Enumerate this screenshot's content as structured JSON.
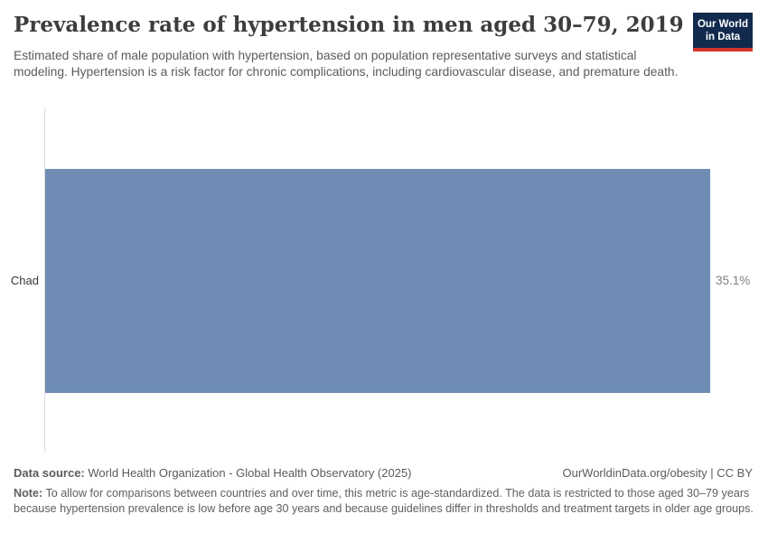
{
  "header": {
    "title": "Prevalence rate of hypertension in men aged 30–79, 2019",
    "subtitle": "Estimated share of male population with hypertension, based on population representative surveys and statistical modeling. Hypertension is a risk factor for chronic complications, including cardiovascular disease, and premature death.",
    "logo": {
      "line1": "Our World",
      "line2": "in Data",
      "background_color": "#122a4e",
      "accent_color": "#d2342b"
    }
  },
  "chart_data": {
    "type": "bar",
    "orientation": "horizontal",
    "title": "Prevalence rate of hypertension in men aged 30–79, 2019",
    "categories": [
      "Chad"
    ],
    "values": [
      35.1
    ],
    "value_labels": [
      "35.1%"
    ],
    "unit": "%",
    "xlabel": "",
    "ylabel": "",
    "xlim": [
      0,
      35.1
    ],
    "grid": false,
    "legend": false,
    "bar_color": "#6e8cb4",
    "axis_line_color": "#dadada"
  },
  "footer": {
    "data_source_label": "Data source:",
    "data_source_text": " World Health Organization - Global Health Observatory (2025)",
    "attribution": "OurWorldinData.org/obesity | CC BY",
    "note_label": "Note:",
    "note_text": " To allow for comparisons between countries and over time, this metric is age-standardized. The data is restricted to those aged 30–79 years because hypertension prevalence is low before age 30 years and because guidelines differ in thresholds and treatment targets in older age groups."
  }
}
